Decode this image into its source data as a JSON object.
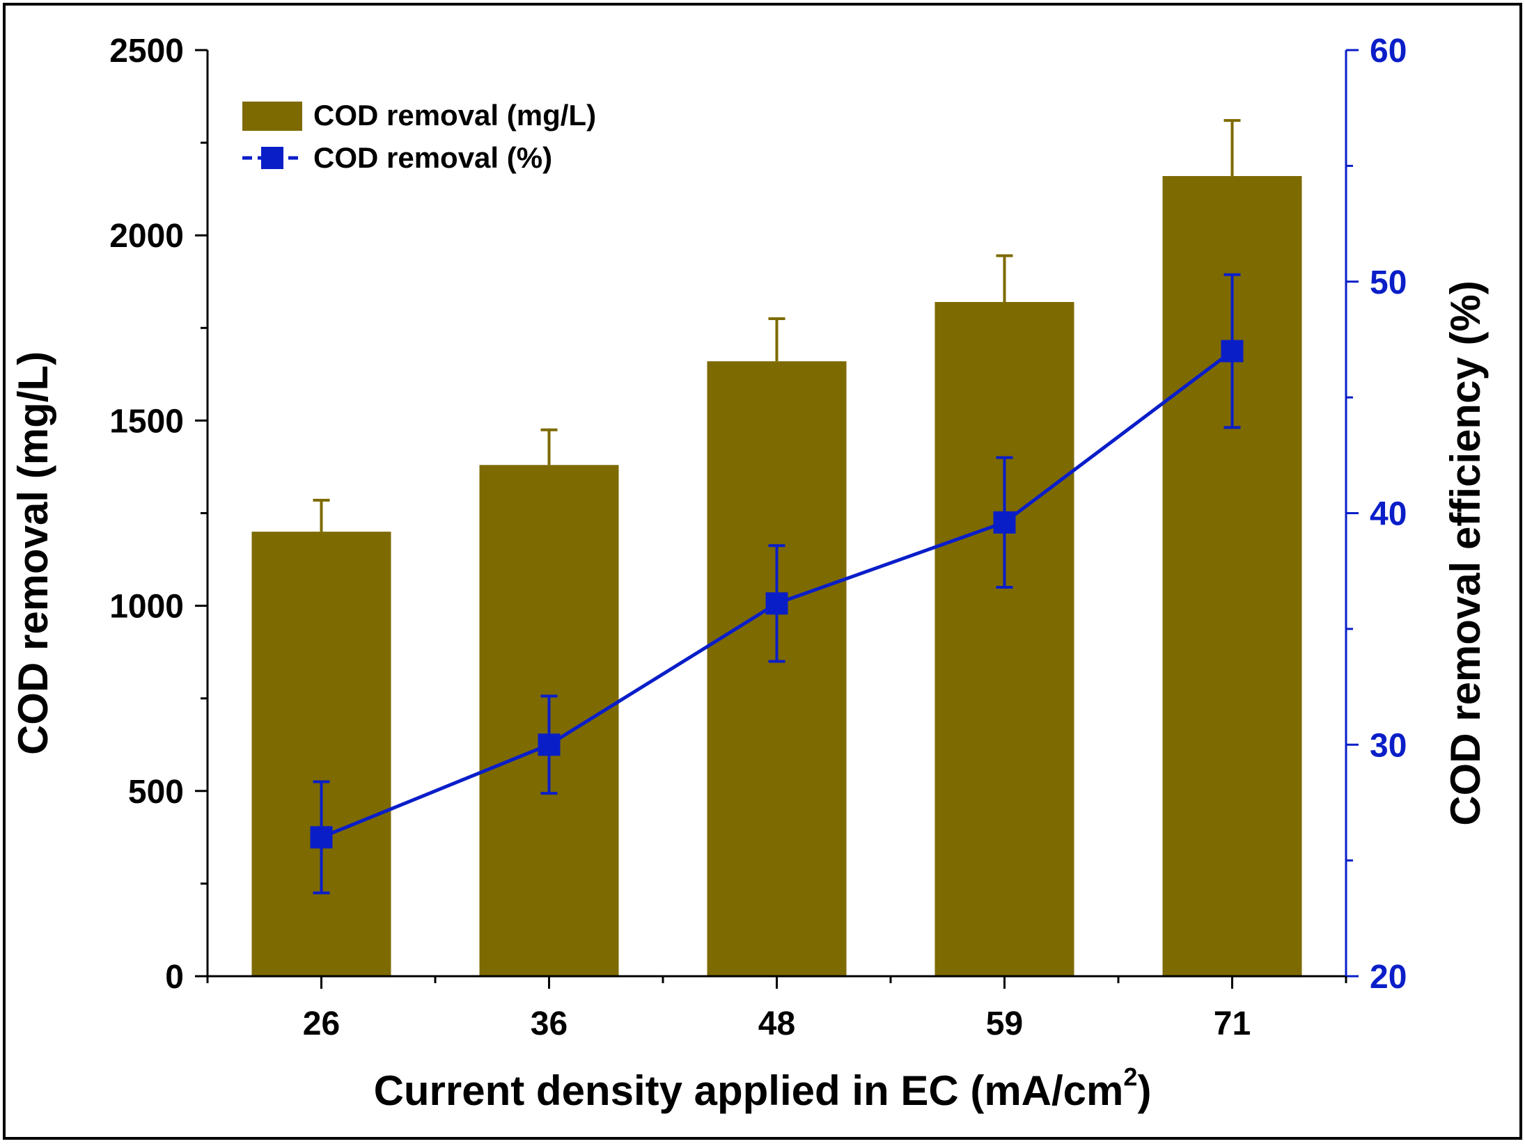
{
  "chart_data": {
    "type": "bar",
    "title": "",
    "xlabel": "Current density applied in EC (mA/cm",
    "xlabel_sup": "2",
    "xlabel_close": ")",
    "ylabel": "COD removal (mg/L)",
    "y2label": "COD removal efficiency (%)",
    "categories": [
      "26",
      "36",
      "48",
      "59",
      "71"
    ],
    "ylim": [
      0,
      2500
    ],
    "y2lim": [
      20,
      60
    ],
    "yticks": [
      "0",
      "500",
      "1000",
      "1500",
      "2000",
      "2500"
    ],
    "y2ticks": [
      "20",
      "30",
      "40",
      "50",
      "60"
    ],
    "series": [
      {
        "name": "COD removal (mg/L)",
        "type": "bar",
        "axis": "left",
        "color": "#7d6a00",
        "values": [
          1200,
          1380,
          1660,
          1820,
          2160
        ],
        "error": [
          85,
          95,
          115,
          125,
          150
        ]
      },
      {
        "name": "COD removal (%)",
        "type": "line",
        "axis": "right",
        "color": "#0a1ec8",
        "marker": "square",
        "values": [
          26.0,
          30.0,
          36.1,
          39.6,
          47.0
        ],
        "error": [
          2.4,
          2.1,
          2.5,
          2.8,
          3.3
        ]
      }
    ],
    "legend_position": "top-left"
  }
}
